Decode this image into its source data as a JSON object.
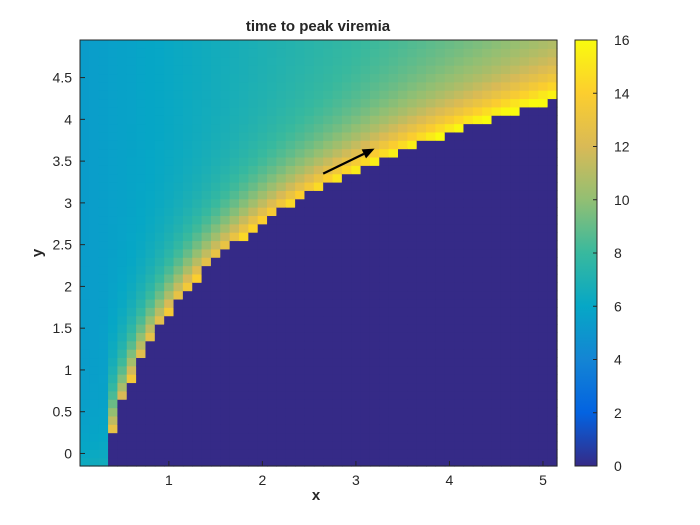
{
  "chart_data": {
    "type": "heatmap",
    "title": "time to peak viremia",
    "xlabel": "x",
    "ylabel": "y",
    "xlim": [
      0.05,
      5.15
    ],
    "ylim": [
      -0.15,
      4.95
    ],
    "xticks": [
      1,
      2,
      3,
      4,
      5
    ],
    "xtick_labels": [
      "1",
      "2",
      "3",
      "4",
      "5"
    ],
    "yticks": [
      0,
      0.5,
      1,
      1.5,
      2,
      2.5,
      3,
      3.5,
      4,
      4.5
    ],
    "ytick_labels": [
      "0",
      "0.5",
      "1",
      "1.5",
      "2",
      "2.5",
      "3",
      "3.5",
      "4",
      "4.5"
    ],
    "grid": false,
    "colormap": "parula",
    "colorbar": {
      "range": [
        0,
        16
      ],
      "ticks": [
        0,
        2,
        4,
        6,
        8,
        10,
        12,
        14,
        16
      ],
      "tick_labels": [
        "0",
        "2",
        "4",
        "6",
        "8",
        "10",
        "12",
        "14",
        "16"
      ],
      "colors": [
        "#352a87",
        "#0363e1",
        "#1485d4",
        "#06a7c6",
        "#38b99e",
        "#92bf73",
        "#d9ba56",
        "#fcce2e",
        "#f9fb0e"
      ]
    },
    "grid_spacing": 0.1,
    "boundary_description": "region below curve y ~ 1.55*ln(x/0.36)+0.1 has value 0",
    "annotations": [
      {
        "type": "arrow",
        "from": [
          2.65,
          3.35
        ],
        "to": [
          3.2,
          3.65
        ]
      }
    ]
  }
}
